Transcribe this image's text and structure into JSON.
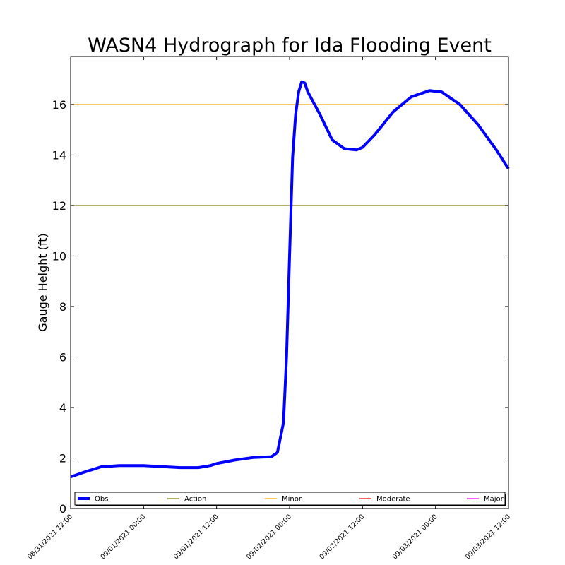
{
  "chart_data": {
    "type": "line",
    "title": "WASN4 Hydrograph for Ida Flooding Event",
    "xlabel": "",
    "ylabel": "Gauge Height (ft)",
    "ylim": [
      0,
      17.9
    ],
    "yticks": [
      0,
      2,
      4,
      6,
      8,
      10,
      12,
      14,
      16
    ],
    "xlim": [
      "08/31/2021 12:00",
      "09/03/2021 12:00"
    ],
    "xticks": [
      "08/31/2021 12:00",
      "09/01/2021 00:00",
      "09/01/2021 12:00",
      "09/02/2021 00:00",
      "09/02/2021 12:00",
      "09/03/2021 00:00",
      "09/03/2021 12:00"
    ],
    "grid": false,
    "legend_position": "bottom",
    "series": [
      {
        "name": "Obs",
        "color": "#0000ff",
        "x": [
          "08/31/2021 12:00",
          "08/31/2021 14:00",
          "08/31/2021 17:00",
          "08/31/2021 20:00",
          "09/01/2021 00:00",
          "09/01/2021 06:00",
          "09/01/2021 09:00",
          "09/01/2021 11:00",
          "09/01/2021 12:00",
          "09/01/2021 15:00",
          "09/01/2021 18:00",
          "09/01/2021 21:00",
          "09/01/2021 22:00",
          "09/01/2021 23:00",
          "09/01/2021 23:30",
          "09/02/2021 00:00",
          "09/02/2021 00:30",
          "09/02/2021 01:00",
          "09/02/2021 01:30",
          "09/02/2021 02:00",
          "09/02/2021 02:30",
          "09/02/2021 03:00",
          "09/02/2021 05:00",
          "09/02/2021 07:00",
          "09/02/2021 09:00",
          "09/02/2021 11:00",
          "09/02/2021 12:00",
          "09/02/2021 14:00",
          "09/02/2021 17:00",
          "09/02/2021 20:00",
          "09/02/2021 23:00",
          "09/03/2021 01:00",
          "09/03/2021 04:00",
          "09/03/2021 07:00",
          "09/03/2021 10:00",
          "09/03/2021 12:00"
        ],
        "y": [
          1.25,
          1.42,
          1.65,
          1.7,
          1.7,
          1.62,
          1.62,
          1.7,
          1.78,
          1.92,
          2.02,
          2.05,
          2.22,
          3.4,
          6.0,
          10.0,
          13.9,
          15.6,
          16.5,
          16.9,
          16.85,
          16.5,
          15.6,
          14.6,
          14.25,
          14.2,
          14.3,
          14.8,
          15.7,
          16.3,
          16.55,
          16.5,
          16.0,
          15.2,
          14.2,
          13.45
        ]
      }
    ],
    "thresholds": [
      {
        "name": "Action",
        "color": "#808000",
        "value": 12
      },
      {
        "name": "Minor",
        "color": "#ffa500",
        "value": 16
      },
      {
        "name": "Moderate",
        "color": "#ff0000",
        "value": null
      },
      {
        "name": "Major",
        "color": "#ff00ff",
        "value": null
      }
    ]
  }
}
